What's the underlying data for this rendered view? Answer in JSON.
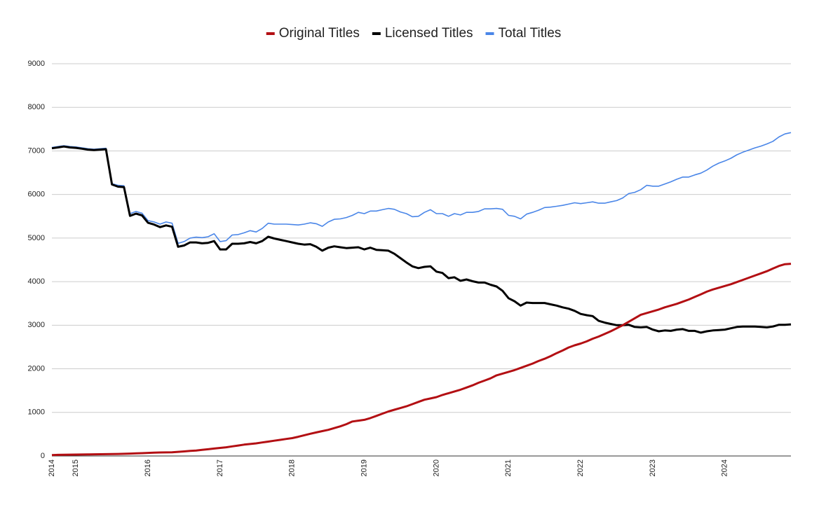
{
  "chart_data": {
    "type": "line",
    "legend": "top",
    "grid": true,
    "categories": [
      "2014",
      null,
      null,
      null,
      "2015",
      null,
      null,
      null,
      null,
      null,
      null,
      null,
      null,
      null,
      null,
      null,
      "2016",
      null,
      null,
      null,
      null,
      null,
      null,
      null,
      null,
      null,
      null,
      null,
      "2017",
      null,
      null,
      null,
      null,
      null,
      null,
      null,
      null,
      null,
      null,
      null,
      "2018",
      null,
      null,
      null,
      null,
      null,
      null,
      null,
      null,
      null,
      null,
      null,
      "2019",
      null,
      null,
      null,
      null,
      null,
      null,
      null,
      null,
      null,
      null,
      null,
      "2020",
      null,
      null,
      null,
      null,
      null,
      null,
      null,
      null,
      null,
      null,
      null,
      "2021",
      null,
      null,
      null,
      null,
      null,
      null,
      null,
      null,
      null,
      null,
      null,
      "2022",
      null,
      null,
      null,
      null,
      null,
      null,
      null,
      null,
      null,
      null,
      null,
      "2023",
      null,
      null,
      null,
      null,
      null,
      null,
      null,
      null,
      null,
      null,
      null,
      "2024",
      null,
      null,
      null,
      null,
      null,
      null,
      null,
      null,
      null,
      null,
      null
    ],
    "series": [
      {
        "name": "Original Titles",
        "color": "#b30f13",
        "width": 3,
        "values": [
          20,
          25,
          28,
          30,
          32,
          34,
          36,
          38,
          40,
          42,
          44,
          46,
          50,
          55,
          60,
          65,
          70,
          75,
          80,
          82,
          85,
          95,
          105,
          115,
          125,
          140,
          155,
          170,
          185,
          200,
          220,
          240,
          260,
          275,
          290,
          310,
          330,
          350,
          370,
          390,
          410,
          440,
          475,
          510,
          540,
          570,
          600,
          640,
          680,
          730,
          790,
          810,
          830,
          870,
          920,
          970,
          1020,
          1060,
          1100,
          1140,
          1190,
          1240,
          1290,
          1320,
          1350,
          1400,
          1440,
          1480,
          1520,
          1570,
          1620,
          1680,
          1730,
          1780,
          1850,
          1890,
          1930,
          1970,
          2020,
          2070,
          2120,
          2180,
          2230,
          2290,
          2360,
          2420,
          2490,
          2540,
          2580,
          2630,
          2690,
          2740,
          2800,
          2860,
          2930,
          3000,
          3080,
          3160,
          3240,
          3280,
          3320,
          3360,
          3410,
          3450,
          3490,
          3540,
          3590,
          3650,
          3710,
          3770,
          3820,
          3860,
          3900,
          3940,
          3990,
          4040,
          4090,
          4140,
          4190,
          4240,
          4300,
          4360,
          4400,
          4410
        ]
      },
      {
        "name": "Licensed Titles",
        "color": "#000000",
        "width": 3,
        "values": [
          7060,
          7080,
          7100,
          7080,
          7070,
          7050,
          7030,
          7020,
          7030,
          7040,
          6230,
          6180,
          6170,
          5510,
          5560,
          5520,
          5350,
          5310,
          5250,
          5290,
          5260,
          4800,
          4830,
          4900,
          4900,
          4880,
          4890,
          4930,
          4740,
          4740,
          4870,
          4870,
          4880,
          4910,
          4880,
          4930,
          5030,
          4990,
          4960,
          4930,
          4900,
          4870,
          4850,
          4860,
          4800,
          4710,
          4780,
          4810,
          4790,
          4770,
          4780,
          4790,
          4740,
          4780,
          4730,
          4720,
          4710,
          4640,
          4540,
          4440,
          4350,
          4310,
          4340,
          4350,
          4230,
          4200,
          4080,
          4100,
          4020,
          4050,
          4010,
          3980,
          3980,
          3930,
          3890,
          3790,
          3620,
          3550,
          3450,
          3520,
          3510,
          3510,
          3510,
          3480,
          3450,
          3410,
          3380,
          3330,
          3260,
          3230,
          3210,
          3100,
          3060,
          3030,
          3000,
          3000,
          3010,
          2960,
          2950,
          2960,
          2900,
          2860,
          2880,
          2870,
          2900,
          2910,
          2870,
          2870,
          2830,
          2860,
          2880,
          2890,
          2900,
          2930,
          2960,
          2970,
          2970,
          2970,
          2960,
          2950,
          2970,
          3010,
          3010,
          3020
        ]
      },
      {
        "name": "Total Titles",
        "color": "#4a86e8",
        "width": 1.6,
        "values": [
          7080,
          7100,
          7120,
          7100,
          7090,
          7070,
          7050,
          7040,
          7050,
          7060,
          6250,
          6210,
          6200,
          5560,
          5610,
          5570,
          5400,
          5370,
          5320,
          5370,
          5340,
          4880,
          4920,
          5000,
          5020,
          5010,
          5030,
          5100,
          4920,
          4940,
          5070,
          5080,
          5120,
          5170,
          5140,
          5220,
          5340,
          5320,
          5320,
          5320,
          5310,
          5300,
          5320,
          5350,
          5330,
          5270,
          5370,
          5430,
          5440,
          5470,
          5520,
          5590,
          5560,
          5620,
          5620,
          5650,
          5680,
          5660,
          5600,
          5560,
          5490,
          5500,
          5590,
          5650,
          5560,
          5560,
          5500,
          5560,
          5530,
          5590,
          5590,
          5610,
          5670,
          5670,
          5680,
          5660,
          5520,
          5500,
          5440,
          5550,
          5590,
          5640,
          5700,
          5710,
          5730,
          5750,
          5780,
          5810,
          5790,
          5810,
          5830,
          5800,
          5800,
          5830,
          5860,
          5920,
          6020,
          6050,
          6110,
          6210,
          6190,
          6190,
          6240,
          6290,
          6350,
          6400,
          6400,
          6450,
          6490,
          6560,
          6650,
          6720,
          6770,
          6830,
          6910,
          6970,
          7020,
          7070,
          7110,
          7160,
          7220,
          7320,
          7390,
          7420
        ]
      }
    ],
    "ylim": [
      0,
      9000
    ],
    "yticks": [
      0,
      1000,
      2000,
      3000,
      4000,
      5000,
      6000,
      7000,
      8000,
      9000
    ]
  }
}
